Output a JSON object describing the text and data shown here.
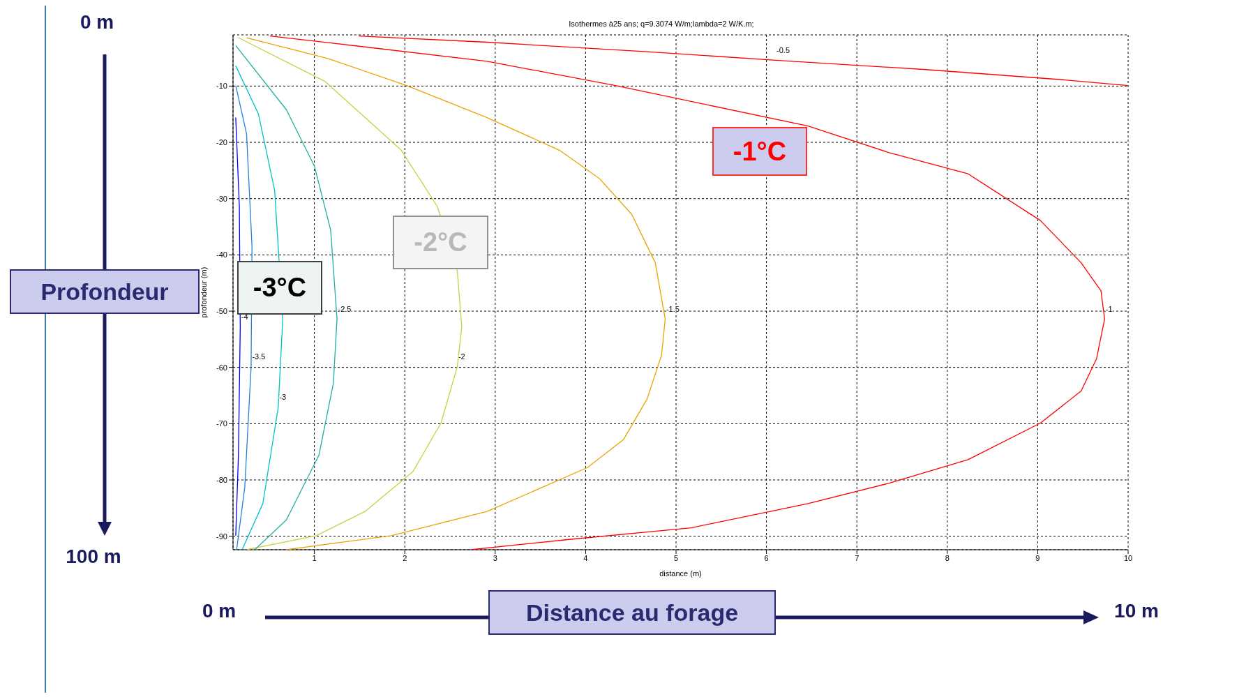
{
  "chart_data": {
    "type": "line",
    "title": "Isothermes à25 ans; q=9.3074 W/m;lambda=2 W/K.m;",
    "xlabel": "distance (m)",
    "ylabel": "profondeur (m)",
    "xlim": [
      0.1,
      10
    ],
    "xticks": [
      1,
      2,
      3,
      4,
      5,
      6,
      7,
      8,
      9,
      10
    ],
    "ylim": [
      -92.4,
      -0.9
    ],
    "yticks": [
      -90,
      -80,
      -70,
      -60,
      -50,
      -40,
      -30,
      -20,
      -10
    ],
    "grid": true,
    "line_style": "solid",
    "marker": "none",
    "legend": false,
    "series": [
      {
        "name": "-0.5",
        "color": "#ff0000",
        "x": [
          1.49,
          2.91,
          4.68,
          6.1,
          7.79,
          9.3,
          10.0
        ],
        "values": [
          -1.1,
          -2.2,
          -3.9,
          -5.4,
          -7.1,
          -8.9,
          -9.9
        ]
      },
      {
        "name": "-1",
        "color": "#ff0000",
        "x": [
          0.51,
          1.22,
          2.91,
          4.33,
          6.46,
          7.35,
          8.23,
          9.03,
          9.48,
          9.7,
          9.74,
          9.65,
          9.48,
          9.03,
          8.23,
          7.35,
          6.46,
          5.17,
          3.8,
          2.73
        ],
        "values": [
          -1.1,
          -2.4,
          -5.6,
          -9.9,
          -17.1,
          -21.8,
          -25.6,
          -33.9,
          -41.4,
          -46.4,
          -51.4,
          -58.5,
          -64.2,
          -69.9,
          -76.4,
          -80.6,
          -84.2,
          -88.5,
          -90.6,
          -92.4
        ]
      },
      {
        "name": "-1.5",
        "color": "#e8a400",
        "x": [
          0.25,
          1.15,
          2.02,
          2.91,
          3.71,
          4.15,
          4.51,
          4.77,
          4.88,
          4.84,
          4.68,
          4.42,
          4.02,
          2.91,
          1.85,
          0.69
        ],
        "values": [
          -1.4,
          -5.1,
          -9.9,
          -15.6,
          -21.4,
          -26.4,
          -32.8,
          -41.4,
          -51.4,
          -57.8,
          -65.6,
          -72.8,
          -77.8,
          -85.6,
          -89.9,
          -92.4
        ]
      },
      {
        "name": "-2",
        "color": "#c8d040",
        "x": [
          0.16,
          1.12,
          1.96,
          2.36,
          2.58,
          2.63,
          2.58,
          2.4,
          2.09,
          1.56,
          1.02,
          0.25
        ],
        "values": [
          -1.4,
          -9.2,
          -21.4,
          -31.4,
          -42.8,
          -52.8,
          -59.9,
          -69.9,
          -78.5,
          -85.6,
          -89.9,
          -92.4
        ]
      },
      {
        "name": "-2.5",
        "color": "#20b0a0",
        "x": [
          0.13,
          0.69,
          1.0,
          1.18,
          1.25,
          1.21,
          1.05,
          0.69,
          0.34
        ],
        "values": [
          -2.8,
          -14.2,
          -24.2,
          -35.6,
          -51.4,
          -62.8,
          -75.6,
          -87.1,
          -92.4
        ]
      },
      {
        "name": "-3",
        "color": "#00c0c8",
        "x": [
          0.13,
          0.38,
          0.56,
          0.65,
          0.6,
          0.43,
          0.2
        ],
        "values": [
          -6.4,
          -14.9,
          -28.5,
          -51.4,
          -67.1,
          -84.2,
          -92.4
        ]
      },
      {
        "name": "-3.5",
        "color": "#2080e0",
        "x": [
          0.13,
          0.25,
          0.31,
          0.3,
          0.23,
          0.14
        ],
        "values": [
          -9.9,
          -18.5,
          -38.5,
          -59.9,
          -81.3,
          -92.4
        ]
      },
      {
        "name": "-4",
        "color": "#0000ff",
        "x": [
          0.13,
          0.17,
          0.18,
          0.16,
          0.13
        ],
        "values": [
          -15.6,
          -31.4,
          -52.8,
          -75.6,
          -89.9
        ]
      }
    ],
    "annotations": [
      "-1°C",
      "-2°C",
      "-3°C",
      "Profondeur",
      "Distance au forage",
      "0 m",
      "100 m",
      "0 m",
      "10 m"
    ]
  }
}
